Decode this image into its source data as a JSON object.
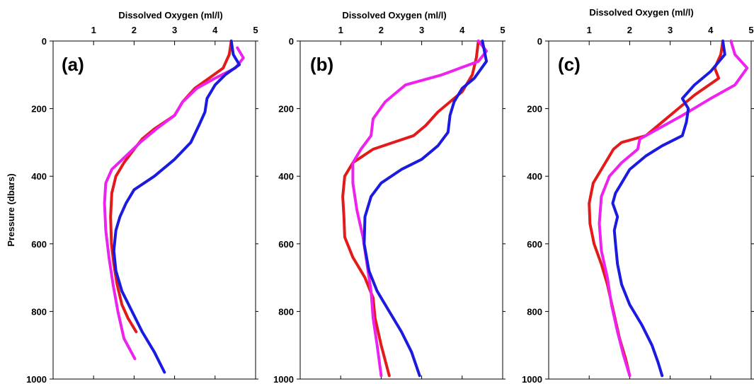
{
  "chart_data": [
    {
      "type": "line",
      "panel_label": "(a)",
      "xlabel": "Dissolved Oxygen (ml/l)",
      "ylabel": "Pressure (dbars)",
      "xlim": [
        0,
        5
      ],
      "ylim": [
        0,
        1000
      ],
      "y_inverted": true,
      "x_axis_position": "top",
      "x_ticks": [
        1,
        2,
        3,
        4,
        5
      ],
      "y_ticks": [
        0,
        200,
        400,
        600,
        800,
        1000
      ],
      "grid": false,
      "series": [
        {
          "color": "#e31a1a",
          "x": [
            4.4,
            4.35,
            4.2,
            3.85,
            3.5,
            3.2,
            3.0,
            2.5,
            2.2,
            2.0,
            1.75,
            1.55,
            1.45,
            1.42,
            1.44,
            1.5,
            1.58,
            1.7,
            1.85,
            2.05
          ],
          "y": [
            0,
            40,
            80,
            110,
            140,
            180,
            220,
            260,
            290,
            320,
            360,
            400,
            450,
            520,
            600,
            660,
            720,
            780,
            820,
            860
          ]
        },
        {
          "color": "#ee22ee",
          "x": [
            4.55,
            4.7,
            4.5,
            4.0,
            3.55,
            3.2,
            3.0,
            2.55,
            2.15,
            1.8,
            1.45,
            1.3,
            1.27,
            1.3,
            1.38,
            1.48,
            1.6,
            1.75,
            2.02
          ],
          "y": [
            20,
            50,
            80,
            110,
            140,
            180,
            220,
            260,
            300,
            340,
            380,
            420,
            480,
            560,
            640,
            720,
            800,
            880,
            940
          ]
        },
        {
          "color": "#1a1ae0",
          "x": [
            4.4,
            4.45,
            4.6,
            4.25,
            4.0,
            3.8,
            3.75,
            3.6,
            3.4,
            3.0,
            2.5,
            2.0,
            1.8,
            1.65,
            1.55,
            1.5,
            1.55,
            1.7,
            1.95,
            2.2,
            2.5,
            2.75
          ],
          "y": [
            0,
            40,
            70,
            100,
            130,
            170,
            210,
            250,
            300,
            350,
            400,
            440,
            480,
            520,
            560,
            620,
            680,
            740,
            800,
            860,
            920,
            980
          ]
        }
      ]
    },
    {
      "type": "line",
      "panel_label": "(b)",
      "xlabel": "Dissolved Oxygen (ml/l)",
      "ylabel": "",
      "xlim": [
        0,
        5
      ],
      "ylim": [
        0,
        1000
      ],
      "y_inverted": true,
      "x_axis_position": "top",
      "x_ticks": [
        1,
        2,
        3,
        4,
        5
      ],
      "y_ticks": [
        0,
        200,
        400,
        600,
        800,
        1000
      ],
      "grid": false,
      "series": [
        {
          "color": "#e31a1a",
          "x": [
            4.4,
            4.35,
            4.25,
            4.0,
            3.7,
            3.4,
            3.1,
            2.8,
            2.3,
            1.8,
            1.3,
            1.1,
            1.05,
            1.08,
            1.1,
            1.3,
            1.6,
            1.8,
            1.85,
            2.0,
            2.2
          ],
          "y": [
            0,
            50,
            100,
            150,
            180,
            210,
            250,
            280,
            300,
            320,
            360,
            400,
            460,
            520,
            580,
            640,
            700,
            760,
            820,
            900,
            990
          ]
        },
        {
          "color": "#ee22ee",
          "x": [
            4.4,
            4.6,
            4.4,
            3.5,
            2.6,
            2.1,
            1.8,
            1.75,
            1.5,
            1.3,
            1.3,
            1.4,
            1.55,
            1.65,
            1.75,
            1.8,
            1.9,
            2.0
          ],
          "y": [
            0,
            30,
            60,
            100,
            130,
            180,
            230,
            280,
            320,
            360,
            420,
            500,
            580,
            660,
            740,
            820,
            900,
            990
          ]
        },
        {
          "color": "#1a1ae0",
          "x": [
            4.5,
            4.6,
            4.3,
            4.0,
            3.8,
            3.7,
            3.65,
            3.4,
            3.0,
            2.5,
            2.0,
            1.75,
            1.6,
            1.58,
            1.7,
            1.9,
            2.2,
            2.5,
            2.75,
            2.95
          ],
          "y": [
            0,
            60,
            110,
            140,
            180,
            220,
            270,
            310,
            350,
            380,
            420,
            460,
            520,
            600,
            680,
            740,
            800,
            860,
            920,
            990
          ]
        }
      ]
    },
    {
      "type": "line",
      "panel_label": "(c)",
      "xlabel": "Dissolved Oxygen (ml/l)",
      "ylabel": "",
      "xlim": [
        0,
        5
      ],
      "ylim": [
        0,
        1000
      ],
      "y_inverted": true,
      "x_axis_position": "top",
      "x_ticks": [
        1,
        2,
        3,
        4,
        5
      ],
      "y_ticks": [
        0,
        200,
        400,
        600,
        800,
        1000
      ],
      "grid": false,
      "series": [
        {
          "color": "#e31a1a",
          "x": [
            4.3,
            4.25,
            4.1,
            4.2,
            3.6,
            3.2,
            2.8,
            2.4,
            1.8,
            1.6,
            1.3,
            1.1,
            1.0,
            1.02,
            1.12,
            1.3,
            1.45,
            1.6,
            1.75,
            1.9,
            2.0
          ],
          "y": [
            0,
            40,
            80,
            110,
            160,
            200,
            240,
            280,
            300,
            320,
            380,
            420,
            480,
            540,
            600,
            660,
            720,
            800,
            880,
            940,
            990
          ]
        },
        {
          "color": "#ee22ee",
          "x": [
            4.5,
            4.6,
            4.9,
            4.6,
            4.0,
            3.3,
            2.7,
            2.25,
            2.2,
            1.8,
            1.5,
            1.3,
            1.25,
            1.3,
            1.45,
            1.55,
            1.7,
            1.85,
            2.0
          ],
          "y": [
            0,
            40,
            80,
            130,
            170,
            220,
            260,
            290,
            320,
            360,
            400,
            460,
            540,
            620,
            700,
            780,
            860,
            930,
            990
          ]
        },
        {
          "color": "#1a1ae0",
          "x": [
            4.3,
            4.35,
            4.0,
            3.6,
            3.3,
            3.45,
            3.4,
            3.3,
            2.8,
            2.4,
            2.0,
            1.8,
            1.65,
            1.58,
            1.7,
            1.62,
            1.65,
            1.7,
            1.8,
            2.0,
            2.3,
            2.55,
            2.7,
            2.8
          ],
          "y": [
            0,
            40,
            90,
            130,
            170,
            200,
            240,
            280,
            310,
            340,
            380,
            420,
            450,
            480,
            520,
            560,
            600,
            660,
            720,
            780,
            840,
            900,
            950,
            990
          ]
        }
      ]
    }
  ]
}
